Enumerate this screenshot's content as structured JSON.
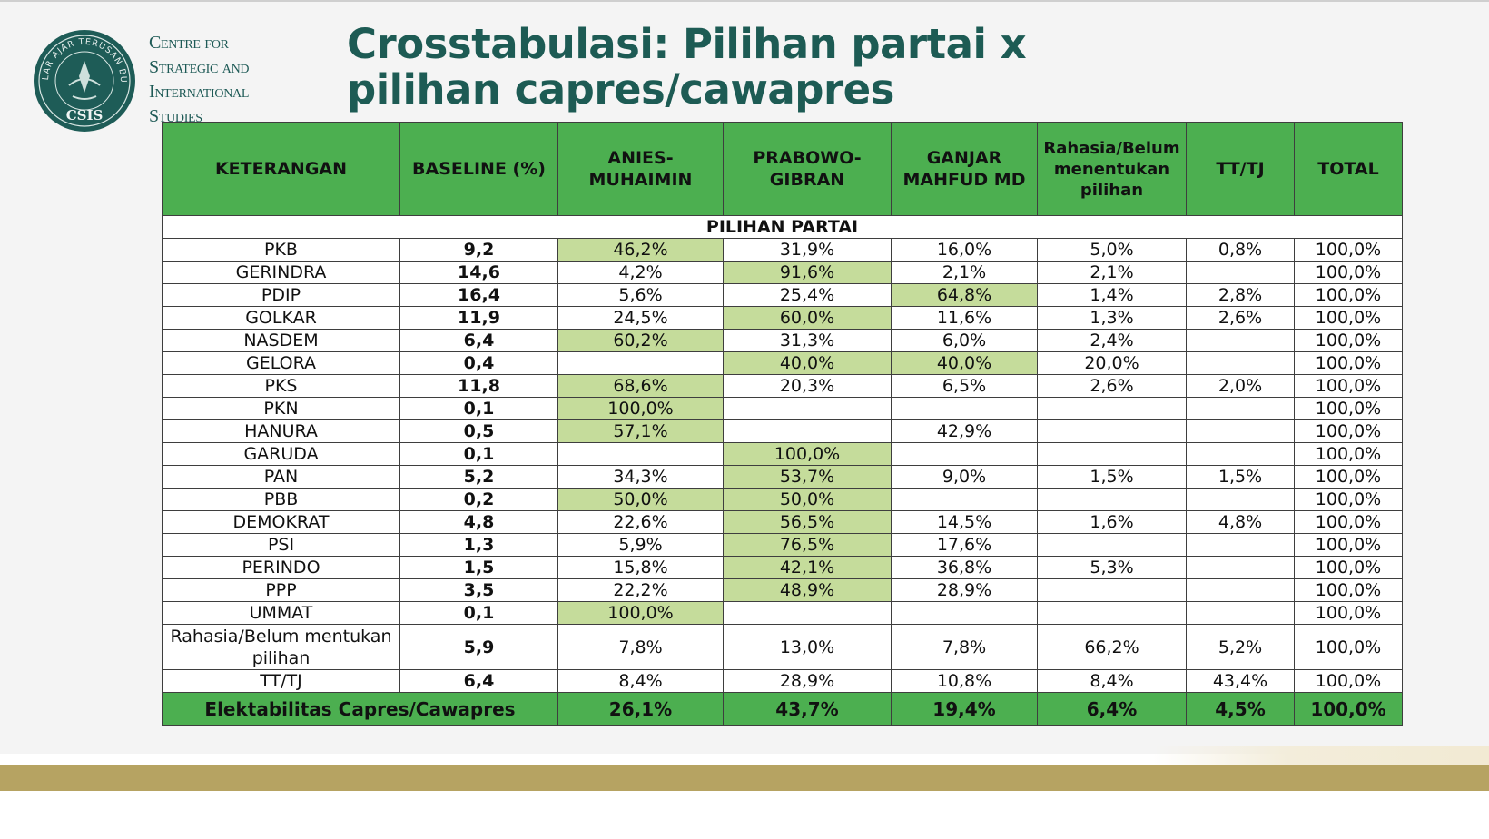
{
  "header": {
    "logo_lines": [
      "Centre for",
      "Strategic and",
      "International",
      "Studies"
    ],
    "seal_arc_text": "NALAR AJAR TERUSAN BUDI",
    "seal_acronym": "CSIS",
    "title_line1": "Crosstabulasi: Pilihan partai x",
    "title_line2": "pilihan capres/cawapres"
  },
  "colors": {
    "title": "#1d5b54",
    "header_green": "#4caf50",
    "highlight": "#c5dc9b",
    "bottom_bar": "#b6a362"
  },
  "table": {
    "columns": [
      "KETERANGAN",
      "BASELINE (%)",
      "ANIES-MUHAIMIN",
      "PRABOWO-GIBRAN",
      "GANJAR MAHFUD MD",
      "Rahasia/Belum menentukan pilihan",
      "TT/TJ",
      "TOTAL"
    ],
    "section_label": "PILIHAN PARTAI",
    "rows": [
      {
        "party": "PKB",
        "baseline": "9,2",
        "anies": "46,2%",
        "prabowo": "31,9%",
        "ganjar": "16,0%",
        "rahasia": "5,0%",
        "ttj": "0,8%",
        "total": "100,0%",
        "hl": "anies"
      },
      {
        "party": "GERINDRA",
        "baseline": "14,6",
        "anies": "4,2%",
        "prabowo": "91,6%",
        "ganjar": "2,1%",
        "rahasia": "2,1%",
        "ttj": "",
        "total": "100,0%",
        "hl": "prabowo"
      },
      {
        "party": "PDIP",
        "baseline": "16,4",
        "anies": "5,6%",
        "prabowo": "25,4%",
        "ganjar": "64,8%",
        "rahasia": "1,4%",
        "ttj": "2,8%",
        "total": "100,0%",
        "hl": "ganjar"
      },
      {
        "party": "GOLKAR",
        "baseline": "11,9",
        "anies": "24,5%",
        "prabowo": "60,0%",
        "ganjar": "11,6%",
        "rahasia": "1,3%",
        "ttj": "2,6%",
        "total": "100,0%",
        "hl": "prabowo"
      },
      {
        "party": "NASDEM",
        "baseline": "6,4",
        "anies": "60,2%",
        "prabowo": "31,3%",
        "ganjar": "6,0%",
        "rahasia": "2,4%",
        "ttj": "",
        "total": "100,0%",
        "hl": "anies"
      },
      {
        "party": "GELORA",
        "baseline": "0,4",
        "anies": "",
        "prabowo": "40,0%",
        "ganjar": "40,0%",
        "rahasia": "20,0%",
        "ttj": "",
        "total": "100,0%",
        "hl": "prabowo,ganjar"
      },
      {
        "party": "PKS",
        "baseline": "11,8",
        "anies": "68,6%",
        "prabowo": "20,3%",
        "ganjar": "6,5%",
        "rahasia": "2,6%",
        "ttj": "2,0%",
        "total": "100,0%",
        "hl": "anies"
      },
      {
        "party": "PKN",
        "baseline": "0,1",
        "anies": "100,0%",
        "prabowo": "",
        "ganjar": "",
        "rahasia": "",
        "ttj": "",
        "total": "100,0%",
        "hl": "anies"
      },
      {
        "party": "HANURA",
        "baseline": "0,5",
        "anies": "57,1%",
        "prabowo": "",
        "ganjar": "42,9%",
        "rahasia": "",
        "ttj": "",
        "total": "100,0%",
        "hl": "anies"
      },
      {
        "party": "GARUDA",
        "baseline": "0,1",
        "anies": "",
        "prabowo": "100,0%",
        "ganjar": "",
        "rahasia": "",
        "ttj": "",
        "total": "100,0%",
        "hl": "prabowo"
      },
      {
        "party": "PAN",
        "baseline": "5,2",
        "anies": "34,3%",
        "prabowo": "53,7%",
        "ganjar": "9,0%",
        "rahasia": "1,5%",
        "ttj": "1,5%",
        "total": "100,0%",
        "hl": "prabowo"
      },
      {
        "party": "PBB",
        "baseline": "0,2",
        "anies": "50,0%",
        "prabowo": "50,0%",
        "ganjar": "",
        "rahasia": "",
        "ttj": "",
        "total": "100,0%",
        "hl": "anies,prabowo"
      },
      {
        "party": "DEMOKRAT",
        "baseline": "4,8",
        "anies": "22,6%",
        "prabowo": "56,5%",
        "ganjar": "14,5%",
        "rahasia": "1,6%",
        "ttj": "4,8%",
        "total": "100,0%",
        "hl": "prabowo"
      },
      {
        "party": "PSI",
        "baseline": "1,3",
        "anies": "5,9%",
        "prabowo": "76,5%",
        "ganjar": "17,6%",
        "rahasia": "",
        "ttj": "",
        "total": "100,0%",
        "hl": "prabowo"
      },
      {
        "party": "PERINDO",
        "baseline": "1,5",
        "anies": "15,8%",
        "prabowo": "42,1%",
        "ganjar": "36,8%",
        "rahasia": "5,3%",
        "ttj": "",
        "total": "100,0%",
        "hl": "prabowo"
      },
      {
        "party": "PPP",
        "baseline": "3,5",
        "anies": "22,2%",
        "prabowo": "48,9%",
        "ganjar": "28,9%",
        "rahasia": "",
        "ttj": "",
        "total": "100,0%",
        "hl": "prabowo"
      },
      {
        "party": "UMMAT",
        "baseline": "0,1",
        "anies": "100,0%",
        "prabowo": "",
        "ganjar": "",
        "rahasia": "",
        "ttj": "",
        "total": "100,0%",
        "hl": "anies"
      },
      {
        "party": "Rahasia/Belum mentukan pilihan",
        "baseline": "5,9",
        "anies": "7,8%",
        "prabowo": "13,0%",
        "ganjar": "7,8%",
        "rahasia": "66,2%",
        "ttj": "5,2%",
        "total": "100,0%",
        "hl": ""
      },
      {
        "party": "TT/TJ",
        "baseline": "6,4",
        "anies": "8,4%",
        "prabowo": "28,9%",
        "ganjar": "10,8%",
        "rahasia": "8,4%",
        "ttj": "43,4%",
        "total": "100,0%",
        "hl": ""
      }
    ],
    "footer": {
      "label": "Elektabilitas Capres/Cawapres",
      "anies": "26,1%",
      "prabowo": "43,7%",
      "ganjar": "19,4%",
      "rahasia": "6,4%",
      "ttj": "4,5%",
      "total": "100,0%"
    }
  }
}
